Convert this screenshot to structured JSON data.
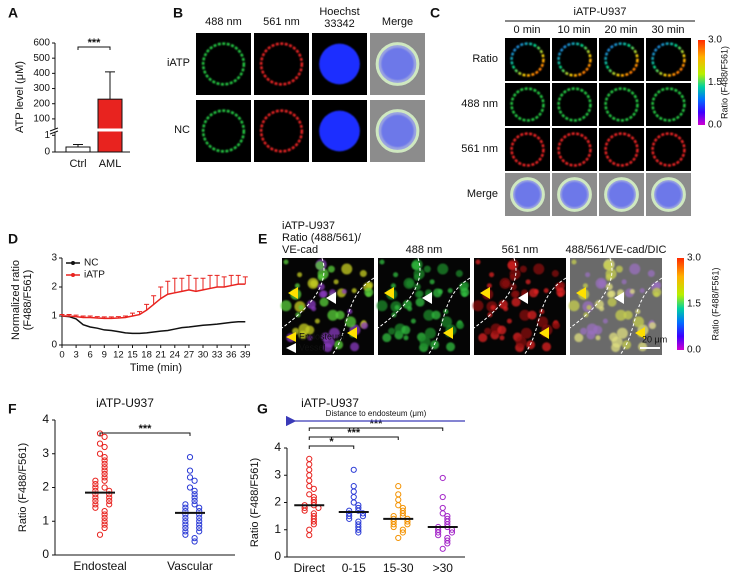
{
  "panel_labels": [
    "A",
    "B",
    "C",
    "D",
    "E",
    "F",
    "G"
  ],
  "panel_b": {
    "columns": [
      "488 nm",
      "561 nm",
      [
        "Hoechst",
        "33342"
      ],
      "Merge"
    ],
    "rows": [
      "iATP",
      "NC"
    ]
  },
  "panel_c": {
    "title": "iATP-U937",
    "columns": [
      "0 min",
      "10 min",
      "20 min",
      "30 min"
    ],
    "rows": [
      "Ratio",
      "488 nm",
      "561 nm",
      "Merge"
    ],
    "colorbar_ticks": [
      "3.0",
      "1.5",
      "0.0"
    ],
    "colorbar_label": "Ratio (F488/F561)"
  },
  "panel_e": {
    "title": "iATP-U937",
    "subtitle": "Ratio (488/561)/",
    "subtitle2": "VE-cad",
    "columns": [
      "488 nm",
      "561 nm",
      "488/561/VE-cad/DIC"
    ],
    "legend": [
      "Endosteum",
      "Vessel"
    ],
    "scale_bar": "20 μm",
    "colorbar_ticks": [
      "3.0",
      "1.5",
      "0.0"
    ],
    "colorbar_label": "Ratio (F488/F561)"
  },
  "chart_data": [
    {
      "type": "bar",
      "ylabel": "ATP level (μM)",
      "categories": [
        "Ctrl",
        "AML"
      ],
      "values": [
        0.3,
        230
      ],
      "errors": [
        0.15,
        180
      ],
      "colors": [
        "#ffffff",
        "#e8231f"
      ],
      "ylim": [
        0,
        600
      ],
      "ybreak": [
        1.2,
        40
      ],
      "yticks": [
        0,
        1,
        100,
        200,
        300,
        400,
        500,
        600
      ],
      "annotation": "***"
    },
    {
      "type": "line",
      "ylabel": [
        "Normalized ratio",
        "(F488/F561)"
      ],
      "xlabel": "Time (min)",
      "legend": "upper left",
      "x": [
        0,
        1.5,
        3,
        4.5,
        6,
        7.5,
        9,
        10.5,
        12,
        13.5,
        15,
        16.5,
        18,
        19.5,
        21,
        22.5,
        24,
        25.5,
        27,
        28.5,
        30,
        31.5,
        33,
        34.5,
        36,
        37.5,
        39
      ],
      "series": [
        {
          "name": "NC",
          "color": "#111111",
          "values": [
            1.0,
            0.98,
            0.9,
            0.7,
            0.62,
            0.58,
            0.52,
            0.5,
            0.46,
            0.42,
            0.4,
            0.4,
            0.42,
            0.45,
            0.48,
            0.5,
            0.55,
            0.6,
            0.62,
            0.65,
            0.68,
            0.7,
            0.72,
            0.75,
            0.78,
            0.8,
            0.8
          ]
        },
        {
          "name": "iATP",
          "color": "#e8231f",
          "values": [
            1.0,
            1.0,
            0.98,
            0.95,
            0.95,
            0.93,
            0.92,
            0.92,
            0.93,
            0.95,
            1.0,
            1.05,
            1.2,
            1.4,
            1.6,
            1.75,
            1.8,
            1.85,
            1.9,
            1.85,
            1.9,
            1.95,
            2.0,
            2.0,
            2.05,
            2.1,
            2.1
          ],
          "errors": [
            0.05,
            0.05,
            0.05,
            0.05,
            0.05,
            0.05,
            0.05,
            0.05,
            0.05,
            0.05,
            0.1,
            0.1,
            0.2,
            0.3,
            0.4,
            0.45,
            0.5,
            0.45,
            0.5,
            0.45,
            0.4,
            0.45,
            0.4,
            0.35,
            0.35,
            0.3,
            0.25
          ]
        }
      ],
      "xlim": [
        0,
        40
      ],
      "xticks": [
        0,
        3,
        6,
        9,
        12,
        15,
        18,
        21,
        24,
        27,
        30,
        33,
        36,
        39
      ],
      "ylim": [
        0,
        3
      ],
      "yticks": [
        0,
        1,
        2,
        3
      ]
    },
    {
      "type": "dotplot",
      "title": "iATP-U937",
      "ylabel": "Ratio (F488/F561)",
      "categories": [
        "Endosteal",
        "Vascular"
      ],
      "groups": [
        {
          "color": "#e8231f",
          "mean": 1.85,
          "values": [
            3.6,
            3.5,
            3.3,
            3.2,
            3.0,
            2.9,
            2.8,
            2.7,
            2.6,
            2.5,
            2.4,
            2.3,
            2.2,
            2.2,
            2.1,
            2.0,
            2.0,
            1.9,
            1.9,
            1.8,
            1.8,
            1.7,
            1.7,
            1.6,
            1.6,
            1.5,
            1.5,
            1.4,
            1.3,
            1.2,
            1.1,
            1.0,
            0.9,
            0.8,
            0.6
          ]
        },
        {
          "color": "#2b3bd6",
          "mean": 1.25,
          "values": [
            2.9,
            2.5,
            2.3,
            2.2,
            2.0,
            1.9,
            1.8,
            1.7,
            1.6,
            1.5,
            1.5,
            1.4,
            1.4,
            1.3,
            1.3,
            1.2,
            1.2,
            1.1,
            1.1,
            1.0,
            1.0,
            0.9,
            0.9,
            0.8,
            0.8,
            0.7,
            0.7,
            0.6,
            0.5,
            0.4
          ]
        }
      ],
      "comparisons": [
        {
          "from": 0,
          "to": 1,
          "label": "***"
        }
      ],
      "ylim": [
        0,
        4
      ],
      "yticks": [
        0,
        1,
        2,
        3,
        4
      ]
    },
    {
      "type": "dotplot",
      "title": "iATP-U937",
      "ylabel": "Ratio (F488/F561)",
      "arrow_label": "Distance to endosteum (μm)",
      "categories": [
        "Direct",
        "0-15",
        "15-30",
        ">30"
      ],
      "groups": [
        {
          "color": "#e8231f",
          "mean": 1.9,
          "values": [
            3.6,
            3.4,
            3.2,
            3.0,
            2.8,
            2.6,
            2.5,
            2.3,
            2.2,
            2.1,
            2.0,
            1.9,
            1.9,
            1.8,
            1.8,
            1.7,
            1.6,
            1.5,
            1.4,
            1.3,
            1.2,
            1.0,
            0.8
          ]
        },
        {
          "color": "#2b3bd6",
          "mean": 1.65,
          "values": [
            3.2,
            2.6,
            2.4,
            2.2,
            2.0,
            1.9,
            1.8,
            1.7,
            1.7,
            1.6,
            1.6,
            1.5,
            1.5,
            1.4,
            1.3,
            1.2,
            1.1,
            1.0,
            0.9
          ]
        },
        {
          "color": "#f39200",
          "mean": 1.4,
          "values": [
            2.6,
            2.3,
            2.1,
            1.9,
            1.8,
            1.7,
            1.6,
            1.5,
            1.5,
            1.4,
            1.4,
            1.3,
            1.3,
            1.2,
            1.2,
            1.1,
            1.0,
            0.9,
            0.7
          ]
        },
        {
          "color": "#a326c8",
          "mean": 1.1,
          "values": [
            2.9,
            2.2,
            1.8,
            1.6,
            1.5,
            1.4,
            1.3,
            1.2,
            1.1,
            1.1,
            1.0,
            1.0,
            0.9,
            0.9,
            0.8,
            0.7,
            0.6,
            0.5,
            0.3
          ]
        }
      ],
      "comparisons": [
        {
          "from": 0,
          "to": 3,
          "label": "***"
        },
        {
          "from": 0,
          "to": 2,
          "label": "***"
        },
        {
          "from": 0,
          "to": 1,
          "label": "*"
        }
      ],
      "ylim": [
        0,
        4
      ],
      "yticks": [
        0,
        1,
        2,
        3,
        4
      ]
    }
  ]
}
